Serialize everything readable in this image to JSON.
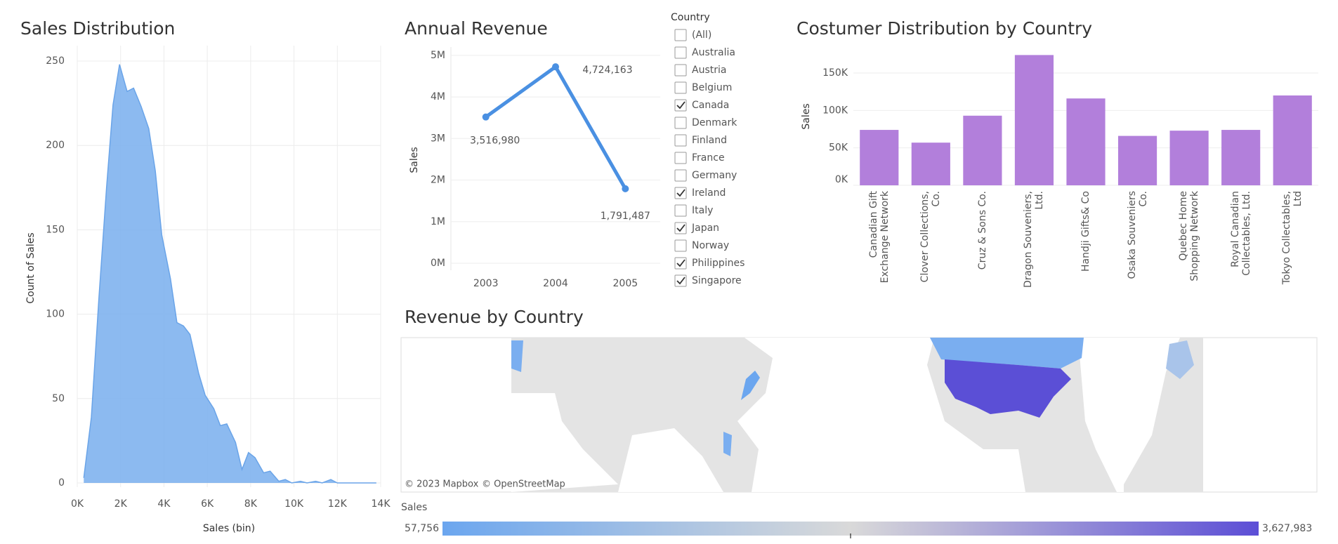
{
  "chart_data": [
    {
      "type": "area",
      "title": "Sales Distribution",
      "x_label": "Sales (bin)",
      "y_label": "Count of Sales",
      "color": "#7fb3ee",
      "x": [
        300,
        650,
        1000,
        1350,
        1650,
        1950,
        2300,
        2600,
        2950,
        3300,
        3600,
        3900,
        4300,
        4600,
        4900,
        5200,
        5600,
        5900,
        6300,
        6600,
        6900,
        7300,
        7600,
        7900,
        8200,
        8600,
        8900,
        9300,
        9600,
        9900,
        10300,
        10600,
        11000,
        11300,
        11700,
        12000,
        12400,
        12700,
        13100,
        13400,
        13800
      ],
      "values": [
        3,
        39,
        110,
        175,
        224,
        248,
        232,
        234,
        223,
        210,
        185,
        147,
        121,
        95,
        93,
        88,
        65,
        52,
        44,
        34,
        35,
        24,
        8,
        18,
        15,
        6,
        7,
        1,
        2,
        0,
        1,
        0,
        1,
        0,
        2,
        0,
        0,
        0,
        0,
        0,
        0
      ],
      "xlim": [
        0,
        14000
      ],
      "xticks": [
        {
          "value": 0,
          "label": "0K"
        },
        {
          "value": 2000,
          "label": "2K"
        },
        {
          "value": 4000,
          "label": "4K"
        },
        {
          "value": 6000,
          "label": "6K"
        },
        {
          "value": 8000,
          "label": "8K"
        },
        {
          "value": 10000,
          "label": "10K"
        },
        {
          "value": 12000,
          "label": "12K"
        },
        {
          "value": 14000,
          "label": "14K"
        }
      ],
      "ylim": [
        0,
        255
      ],
      "yticks": [
        0,
        50,
        100,
        150,
        200,
        250
      ],
      "grid": true
    },
    {
      "type": "line",
      "title": "Annual Revenue",
      "y_label": "Sales",
      "color": "#4a90e2",
      "categories": [
        "2003",
        "2004",
        "2005"
      ],
      "values": [
        3516980,
        4724163,
        1791487
      ],
      "value_labels": [
        "3,516,980",
        "4,724,163",
        "1,791,487"
      ],
      "ylim": [
        0,
        5200000
      ],
      "yticks": [
        {
          "value": 0,
          "label": "0M"
        },
        {
          "value": 1000000,
          "label": "1M"
        },
        {
          "value": 2000000,
          "label": "2M"
        },
        {
          "value": 3000000,
          "label": "3M"
        },
        {
          "value": 4000000,
          "label": "4M"
        },
        {
          "value": 5000000,
          "label": "5M"
        }
      ],
      "grid": true
    },
    {
      "type": "bar",
      "title": "Costumer Distribution by Country",
      "y_label": "Sales",
      "color": "#b27fdb",
      "categories": [
        "Canadian Gift Exchange Network",
        "Clover Collections, Co.",
        "Cruz & Sons Co.",
        "Dragon Souveniers, Ltd.",
        "Handji Gifts& Co",
        "Osaka Souveniers Co.",
        "Quebec Home Shopping Network",
        "Royal Canadian Collectables, Ltd.",
        "Tokyo Collectables, Ltd"
      ],
      "values": [
        74000,
        57000,
        93000,
        174000,
        116000,
        66000,
        73000,
        74000,
        120000
      ],
      "ylim": [
        0,
        180000
      ],
      "yticks": [
        {
          "value": 0,
          "label": "0K"
        },
        {
          "value": 50000,
          "label": "50K"
        },
        {
          "value": 100000,
          "label": "100K"
        },
        {
          "value": 150000,
          "label": "150K"
        }
      ],
      "grid": true
    }
  ],
  "filter": {
    "title": "Country",
    "options": [
      {
        "label": "(All)",
        "checked": false
      },
      {
        "label": "Australia",
        "checked": false
      },
      {
        "label": "Austria",
        "checked": false
      },
      {
        "label": "Belgium",
        "checked": false
      },
      {
        "label": "Canada",
        "checked": true
      },
      {
        "label": "Denmark",
        "checked": false
      },
      {
        "label": "Finland",
        "checked": false
      },
      {
        "label": "France",
        "checked": false
      },
      {
        "label": "Germany",
        "checked": false
      },
      {
        "label": "Ireland",
        "checked": true
      },
      {
        "label": "Italy",
        "checked": false
      },
      {
        "label": "Japan",
        "checked": true
      },
      {
        "label": "Norway",
        "checked": false
      },
      {
        "label": "Philippines",
        "checked": true
      },
      {
        "label": "Singapore",
        "checked": true
      }
    ]
  },
  "map": {
    "title": "Revenue by Country",
    "attribution": [
      "© 2023 Mapbox",
      "© OpenStreetMap"
    ],
    "legend": {
      "title": "Sales",
      "min": {
        "value": 57756,
        "label": "57,756"
      },
      "max": {
        "value": 3627983,
        "label": "3,627,983"
      }
    }
  }
}
